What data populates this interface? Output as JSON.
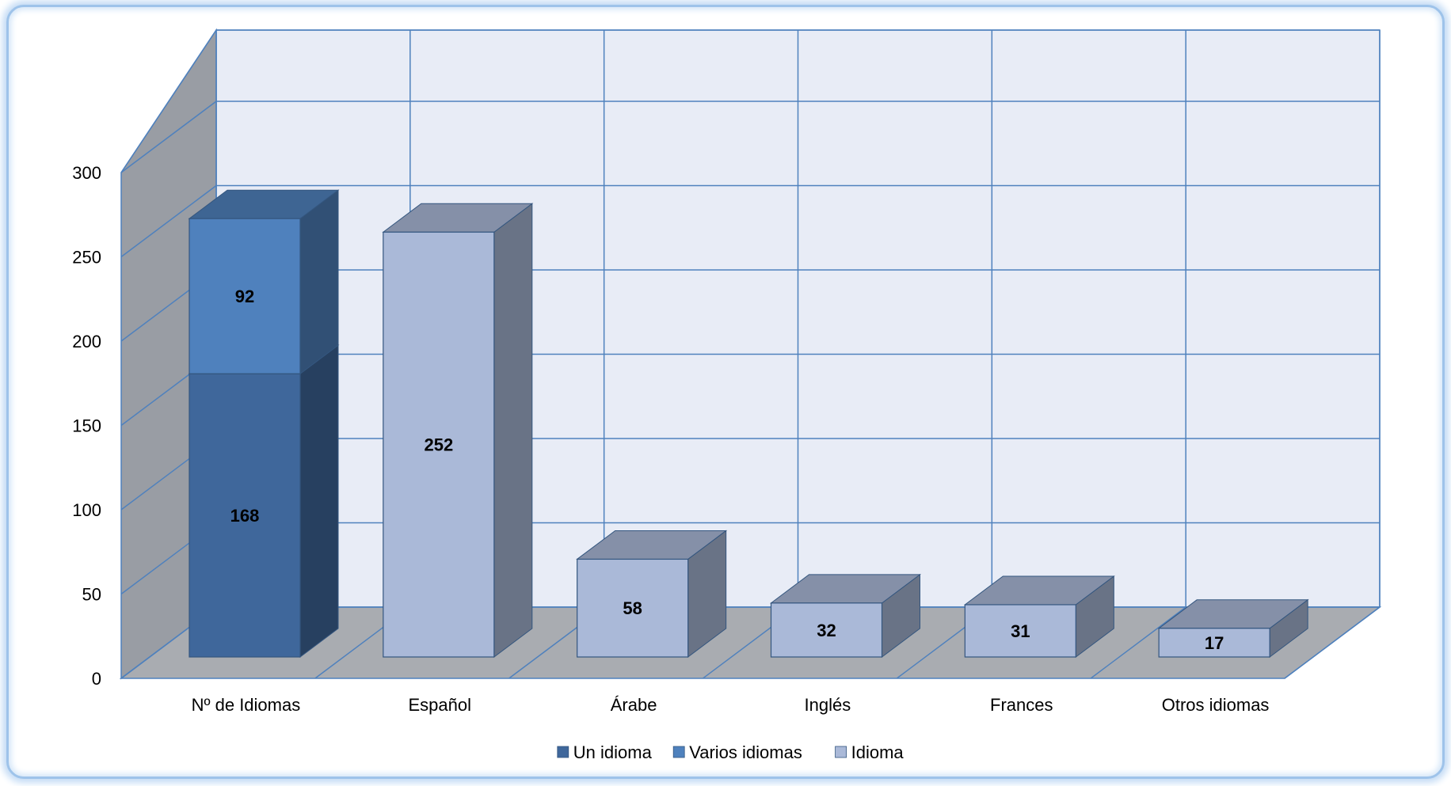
{
  "chart_data": {
    "type": "bar",
    "stacked": true,
    "three_d": true,
    "categories": [
      "Nº de Idiomas",
      "Español",
      "Árabe",
      "Inglés",
      "Frances",
      "Otros idiomas"
    ],
    "series": [
      {
        "name": "Un idioma",
        "values": [
          168,
          null,
          null,
          null,
          null,
          null
        ],
        "color": "#3f679b"
      },
      {
        "name": "Varios idiomas",
        "values": [
          92,
          null,
          null,
          null,
          null,
          null
        ],
        "color": "#4f81bd"
      },
      {
        "name": "Idioma",
        "values": [
          null,
          252,
          58,
          32,
          31,
          17
        ],
        "color": "#aab9d8"
      }
    ],
    "ylim": [
      0,
      300
    ],
    "yticks": [
      0,
      50,
      100,
      150,
      200,
      250,
      300
    ],
    "ytick_labels": [
      "0",
      "50",
      "100",
      "150",
      "200",
      "250",
      "300"
    ],
    "grid": true,
    "legend": "bottom",
    "data_labels": true
  }
}
